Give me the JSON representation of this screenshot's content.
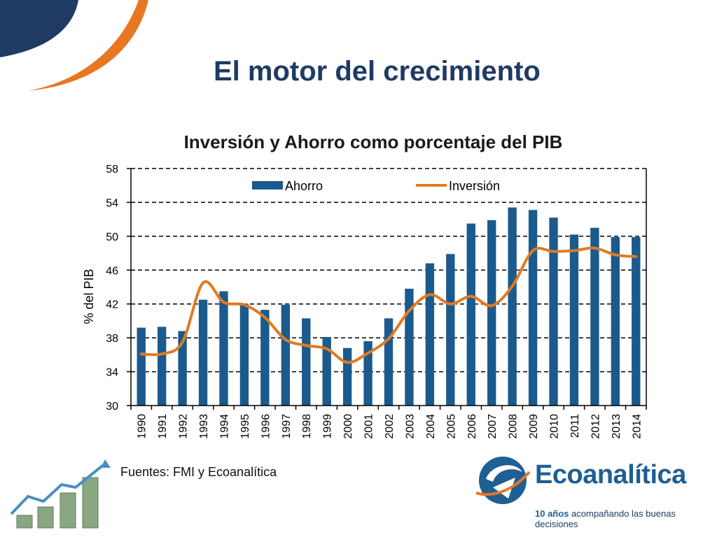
{
  "slide": {
    "title": "El motor del crecimiento",
    "source": "Fuentes: FMI y Ecoanalítica"
  },
  "brand": {
    "name": "Ecoanalítica",
    "tagline_strong": "10 años",
    "tagline_rest": " acompañando las buenas decisiones",
    "colors": {
      "navy": "#1f3b63",
      "blue": "#1f5f93",
      "orange": "#e87722"
    }
  },
  "chart_data": {
    "type": "bar",
    "title": "Inversión y Ahorro como porcentaje del PIB",
    "xlabel": "",
    "ylabel": "% del PIB",
    "ylim": [
      30,
      58
    ],
    "yticks": [
      30,
      34,
      38,
      42,
      46,
      50,
      54,
      58
    ],
    "grid": true,
    "legend_position": "top",
    "categories": [
      "1990",
      "1991",
      "1992",
      "1993",
      "1994",
      "1995",
      "1996",
      "1997",
      "1998",
      "1999",
      "2000",
      "2001",
      "2002",
      "2003",
      "2004",
      "2005",
      "2006",
      "2007",
      "2008",
      "2009",
      "2010",
      "2011",
      "2012",
      "2013",
      "2014"
    ],
    "series": [
      {
        "name": "Ahorro",
        "kind": "bar",
        "color": "#1b5a8c",
        "values": [
          39.2,
          39.3,
          38.8,
          42.5,
          43.5,
          42.0,
          41.3,
          41.9,
          40.3,
          38.1,
          36.8,
          37.6,
          40.3,
          43.8,
          46.8,
          47.9,
          51.5,
          51.9,
          53.4,
          53.1,
          52.2,
          50.2,
          51.0,
          49.9,
          49.9
        ]
      },
      {
        "name": "Inversión",
        "kind": "line",
        "color": "#e07b22",
        "values": [
          36.1,
          36.1,
          37.5,
          44.5,
          42.2,
          41.9,
          40.4,
          37.8,
          37.1,
          36.7,
          35.1,
          36.2,
          37.9,
          41.2,
          43.1,
          42.0,
          42.9,
          41.8,
          44.1,
          48.3,
          48.2,
          48.3,
          48.6,
          47.8,
          47.6
        ]
      }
    ]
  }
}
